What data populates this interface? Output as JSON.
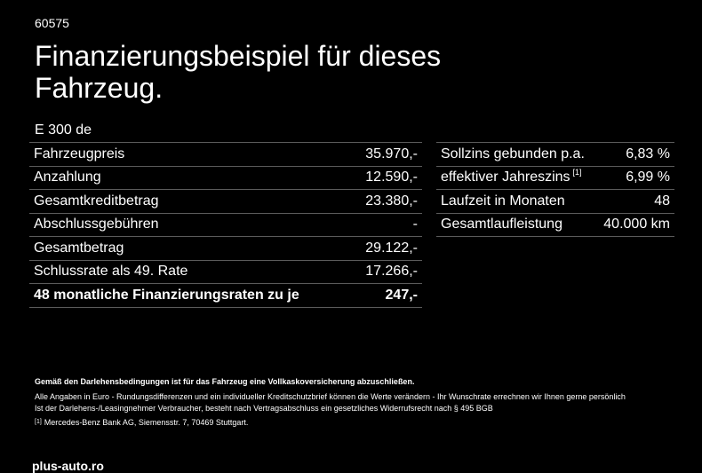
{
  "header": {
    "code": "60575",
    "title": "Finanzierungsbeispiel für dieses Fahrzeug.",
    "model": "E 300 de"
  },
  "left_table": [
    {
      "label": "Fahrzeugpreis",
      "value": "35.970,-"
    },
    {
      "label": "Anzahlung",
      "value": "12.590,-"
    },
    {
      "label": "Gesamtkreditbetrag",
      "value": "23.380,-"
    },
    {
      "label": "Abschlussgebühren",
      "value": "-"
    },
    {
      "label": "Gesamtbetrag",
      "value": "29.122,-"
    },
    {
      "label": "Schlussrate als 49. Rate",
      "value": "17.266,-"
    },
    {
      "label": "48 monatliche Finanzierungsraten zu je",
      "value": "247,-"
    }
  ],
  "right_table": [
    {
      "label": "Sollzins gebunden p.a.",
      "value": "6,83 %"
    },
    {
      "label": "effektiver Jahreszins",
      "sup": "[1]",
      "value": "6,99 %"
    },
    {
      "label": "Laufzeit in Monaten",
      "value": "48"
    },
    {
      "label": "Gesamtlaufleistung",
      "value": "40.000 km"
    }
  ],
  "notes": {
    "insurance": "Gemäß den Darlehensbedingungen ist für das Fahrzeug eine Vollkaskoversicherung abzuschließen.",
    "line1": "Alle Angaben in Euro - Rundungsdifferenzen und ein individueller Kreditschutzbrief können die Werte verändern - Ihr Wunschrate errechnen wir Ihnen gerne persönlich",
    "line2": "Ist der Darlehens-/Leasingnehmer Verbraucher, besteht nach Vertragsabschluss ein gesetzliches Widerrufsrecht nach § 495 BGB",
    "footnote_mark": "[1]",
    "footnote_text": "Mercedes-Benz Bank AG, Siemensstr. 7, 70469 Stuttgart."
  },
  "brand": "plus-auto.ro"
}
